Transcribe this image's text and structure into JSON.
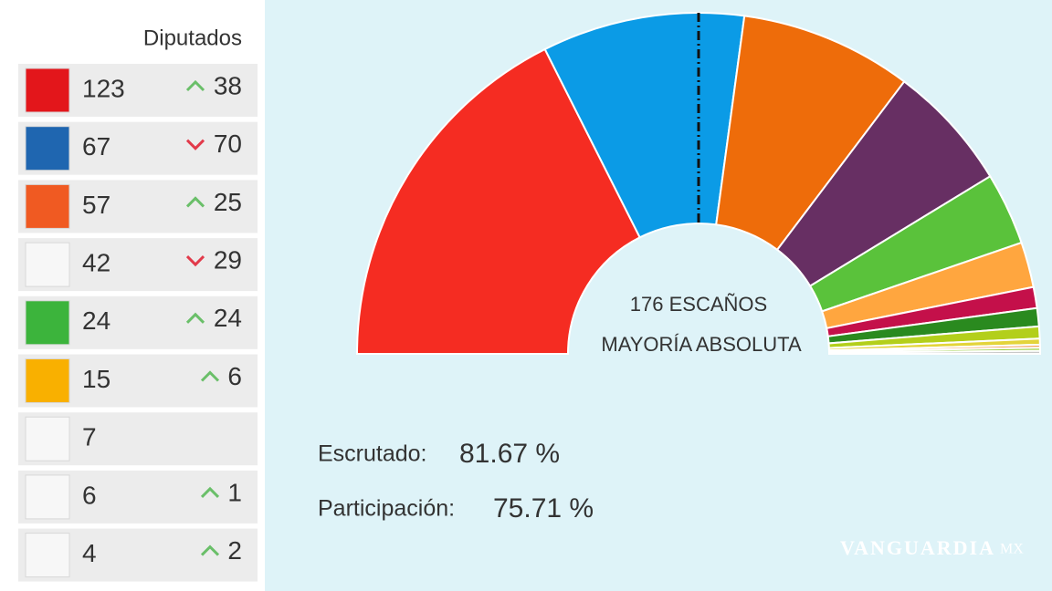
{
  "chart_data": {
    "type": "hemicycle",
    "header": "Diputados",
    "parties": [
      {
        "seats": 123,
        "change": 38,
        "direction": "up",
        "color": "#f52c22",
        "logo_color": "#e3161b"
      },
      {
        "seats": 67,
        "change": 70,
        "direction": "down",
        "color": "#0b9be6",
        "logo_color": "#1f66b0"
      },
      {
        "seats": 57,
        "change": 25,
        "direction": "up",
        "color": "#ee6c0a",
        "logo_color": "#f05a22"
      },
      {
        "seats": 42,
        "change": 29,
        "direction": "down",
        "color": "#672f63",
        "logo_color": "#f7f7f7"
      },
      {
        "seats": 24,
        "change": 24,
        "direction": "up",
        "color": "#5ac23b",
        "logo_color": "#3cb43c"
      },
      {
        "seats": 15,
        "change": 6,
        "direction": "up",
        "color": "#ffa63f",
        "logo_color": "#f9b000"
      },
      {
        "seats": 7,
        "change": null,
        "direction": null,
        "color": "#c4104a",
        "logo_color": "#f7f7f7"
      },
      {
        "seats": 6,
        "change": 1,
        "direction": "up",
        "color": "#2a8a1f",
        "logo_color": "#f7f7f7"
      },
      {
        "seats": 4,
        "change": 2,
        "direction": "up",
        "color": "#b3cf1b",
        "logo_color": "#f7f7f7"
      }
    ],
    "other_seats": [
      2,
      1,
      1,
      1
    ],
    "other_colors": [
      "#e3d43a",
      "#f2a35d",
      "#9ccf3f",
      "#c8c8c8"
    ],
    "majority_label": [
      "176 ESCAÑOS",
      "MAYORÍA ABSOLUTA"
    ],
    "stats": [
      {
        "label": "Escrutado:",
        "value": "81.67 %"
      },
      {
        "label": "Participación:",
        "value": "75.71 %"
      }
    ],
    "watermark": [
      "VANGUARDIA",
      "MX"
    ]
  }
}
